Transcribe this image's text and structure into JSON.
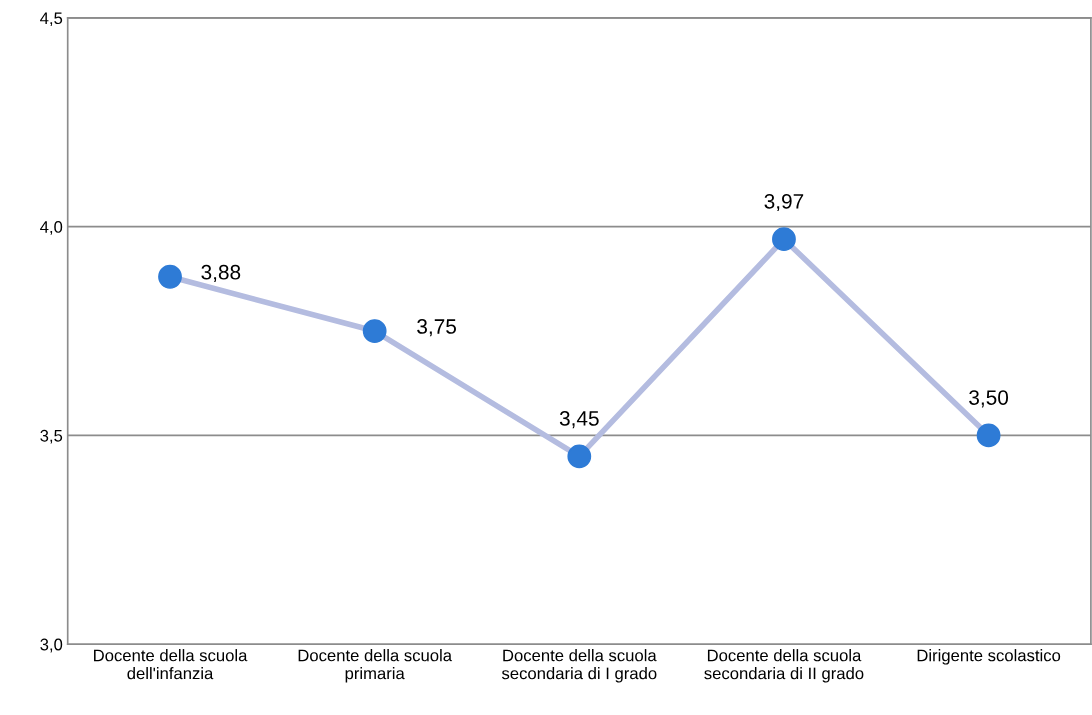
{
  "chart_data": {
    "type": "line",
    "categories": [
      "Docente della scuola\ndell'infanzia",
      "Docente della scuola\nprimaria",
      "Docente della scuola\nsecondaria di I grado",
      "Docente della scuola\nsecondaria di II grado",
      "Dirigente scolastico"
    ],
    "series": [
      {
        "color": "#b4bce0",
        "values": [
          3.88,
          3.75,
          3.45,
          3.97,
          3.5
        ],
        "value_labels": [
          "3,88",
          "3,75",
          "3,45",
          "3,97",
          "3,50"
        ]
      }
    ],
    "marker": "circle",
    "line_style": "solid",
    "ylim": [
      3.0,
      4.5
    ],
    "yticks": [
      {
        "value": 3.0,
        "label": "3,0"
      },
      {
        "value": 3.5,
        "label": "3,5"
      },
      {
        "value": 4.0,
        "label": "4,0"
      },
      {
        "value": 4.5,
        "label": "4,5"
      }
    ],
    "grid": "y",
    "legend": false
  }
}
